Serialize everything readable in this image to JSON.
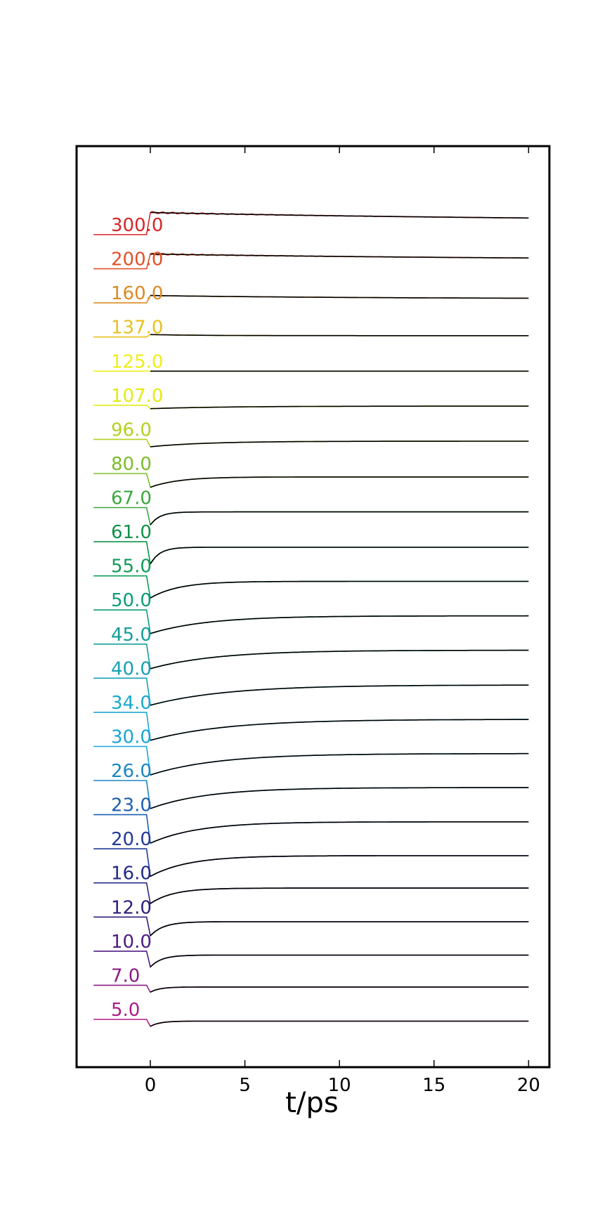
{
  "chart_data": {
    "type": "line",
    "xlabel": "t/ps",
    "xlim": [
      -3.9,
      21.1
    ],
    "xticks": [
      0,
      5,
      10,
      15,
      20
    ],
    "series": [
      {
        "name": "300.0",
        "color": "#d62728",
        "baseline": 0.0,
        "response": 0.45,
        "decay_tau": 25,
        "oscillation": true
      },
      {
        "name": "200.0",
        "color": "#e0522a",
        "baseline": 0.0,
        "response": 0.3,
        "decay_tau": 22,
        "oscillation": true
      },
      {
        "name": "160.0",
        "color": "#dd8a22",
        "baseline": 0.0,
        "response": 0.15,
        "decay_tau": 12,
        "oscillation": false
      },
      {
        "name": "137.0",
        "color": "#e8c020",
        "baseline": 0.0,
        "response": 0.05,
        "decay_tau": 2.5,
        "oscillation": false
      },
      {
        "name": "125.0",
        "color": "#eeee1a",
        "baseline": 0.0,
        "response": 0.0,
        "decay_tau": 4,
        "oscillation": false
      },
      {
        "name": "107.0",
        "color": "#e5ea14",
        "baseline": 0.0,
        "response": -0.07,
        "decay_tau": 4,
        "oscillation": false
      },
      {
        "name": "96.0",
        "color": "#b5cf20",
        "baseline": 0.0,
        "response": -0.15,
        "decay_tau": 3,
        "oscillation": false
      },
      {
        "name": "80.0",
        "color": "#7cbd2a",
        "baseline": 0.0,
        "response": -0.28,
        "decay_tau": 1.5,
        "oscillation": false
      },
      {
        "name": "67.0",
        "color": "#3aa640",
        "baseline": 0.0,
        "response": -0.35,
        "decay_tau": 0.5,
        "oscillation": false
      },
      {
        "name": "61.0",
        "color": "#119048",
        "baseline": 0.0,
        "response": -0.45,
        "decay_tau": 0.5,
        "oscillation": false
      },
      {
        "name": "55.0",
        "color": "#0f9c58",
        "baseline": 0.0,
        "response": -0.45,
        "decay_tau": 1.5,
        "oscillation": false
      },
      {
        "name": "50.0",
        "color": "#0d9e78",
        "baseline": 0.0,
        "response": -0.48,
        "decay_tau": 3,
        "oscillation": false
      },
      {
        "name": "45.0",
        "color": "#149e9a",
        "baseline": 0.0,
        "response": -0.5,
        "decay_tau": 3.5,
        "oscillation": false
      },
      {
        "name": "40.0",
        "color": "#17a0b4",
        "baseline": 0.0,
        "response": -0.55,
        "decay_tau": 4,
        "oscillation": false
      },
      {
        "name": "34.0",
        "color": "#1aa8cc",
        "baseline": 0.0,
        "response": -0.57,
        "decay_tau": 4,
        "oscillation": false
      },
      {
        "name": "30.0",
        "color": "#18a6d6",
        "baseline": 0.0,
        "response": -0.58,
        "decay_tau": 3.5,
        "oscillation": false
      },
      {
        "name": "26.0",
        "color": "#1a86c4",
        "baseline": 0.0,
        "response": -0.57,
        "decay_tau": 3,
        "oscillation": false
      },
      {
        "name": "23.0",
        "color": "#1f5fae",
        "baseline": 0.0,
        "response": -0.58,
        "decay_tau": 2.5,
        "oscillation": false
      },
      {
        "name": "20.0",
        "color": "#233a98",
        "baseline": 0.0,
        "response": -0.56,
        "decay_tau": 2,
        "oscillation": false
      },
      {
        "name": "16.0",
        "color": "#262a84",
        "baseline": 0.0,
        "response": -0.42,
        "decay_tau": 1.2,
        "oscillation": false
      },
      {
        "name": "12.0",
        "color": "#2f1f7c",
        "baseline": 0.0,
        "response": -0.38,
        "decay_tau": 0.7,
        "oscillation": false
      },
      {
        "name": "10.0",
        "color": "#4e1c82",
        "baseline": 0.0,
        "response": -0.32,
        "decay_tau": 0.6,
        "oscillation": false
      },
      {
        "name": "7.0",
        "color": "#8c1a82",
        "baseline": 0.0,
        "response": -0.14,
        "decay_tau": 0.5,
        "oscillation": false
      },
      {
        "name": "5.0",
        "color": "#b01a88",
        "baseline": 0.0,
        "response": -0.14,
        "decay_tau": 0.5,
        "oscillation": false
      }
    ]
  }
}
